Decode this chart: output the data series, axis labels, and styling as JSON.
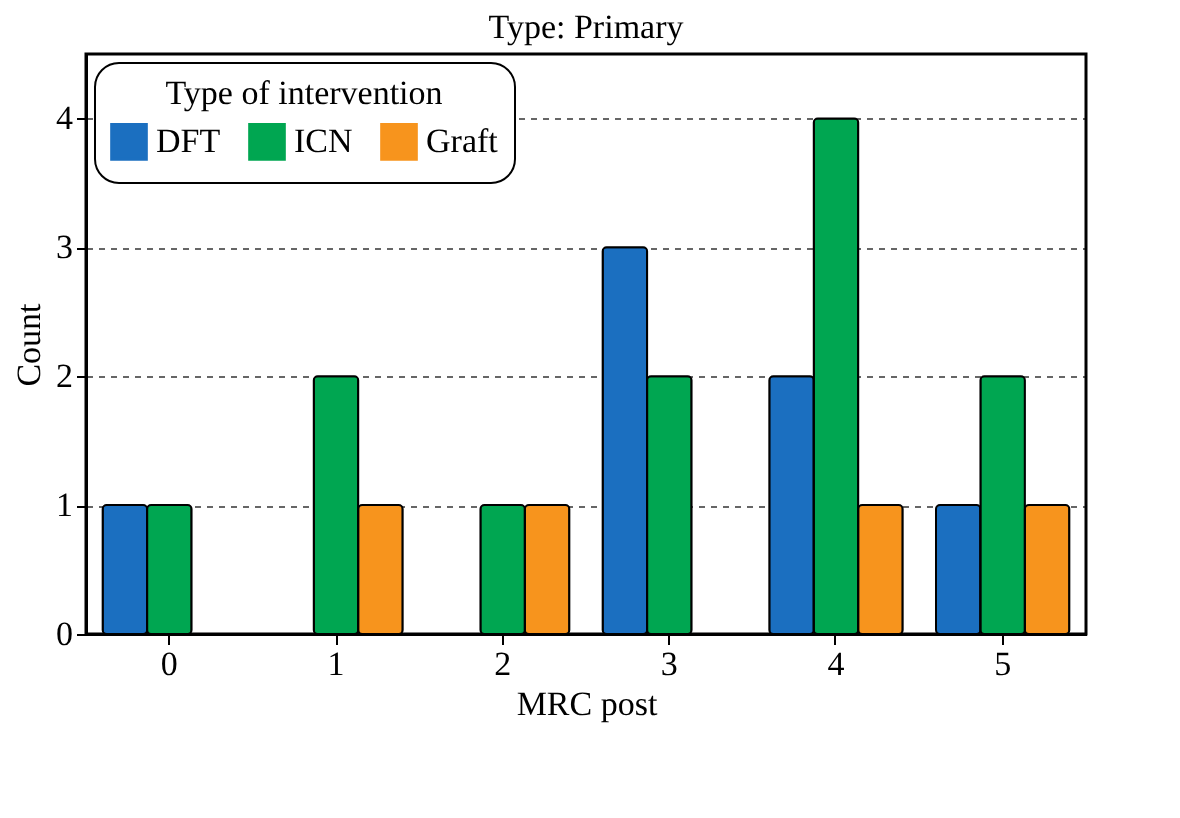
{
  "chart_data": {
    "type": "bar",
    "title": "Type: Primary",
    "xlabel": "MRC post",
    "ylabel": "Count",
    "legend_title": "Type of intervention",
    "categories": [
      "0",
      "1",
      "2",
      "3",
      "4",
      "5"
    ],
    "series": [
      {
        "name": "DFT",
        "color": "#1b6fc0",
        "values": [
          1,
          0,
          0,
          3,
          2,
          1
        ]
      },
      {
        "name": "ICN",
        "color": "#00a651",
        "values": [
          1,
          2,
          1,
          2,
          4,
          2
        ]
      },
      {
        "name": "Graft",
        "color": "#f7941d",
        "values": [
          0,
          1,
          1,
          0,
          1,
          1
        ]
      }
    ],
    "ylim": [
      0,
      4.5
    ],
    "yticks": [
      0,
      1,
      2,
      3,
      4
    ],
    "grid": "y",
    "legend": "top left"
  }
}
